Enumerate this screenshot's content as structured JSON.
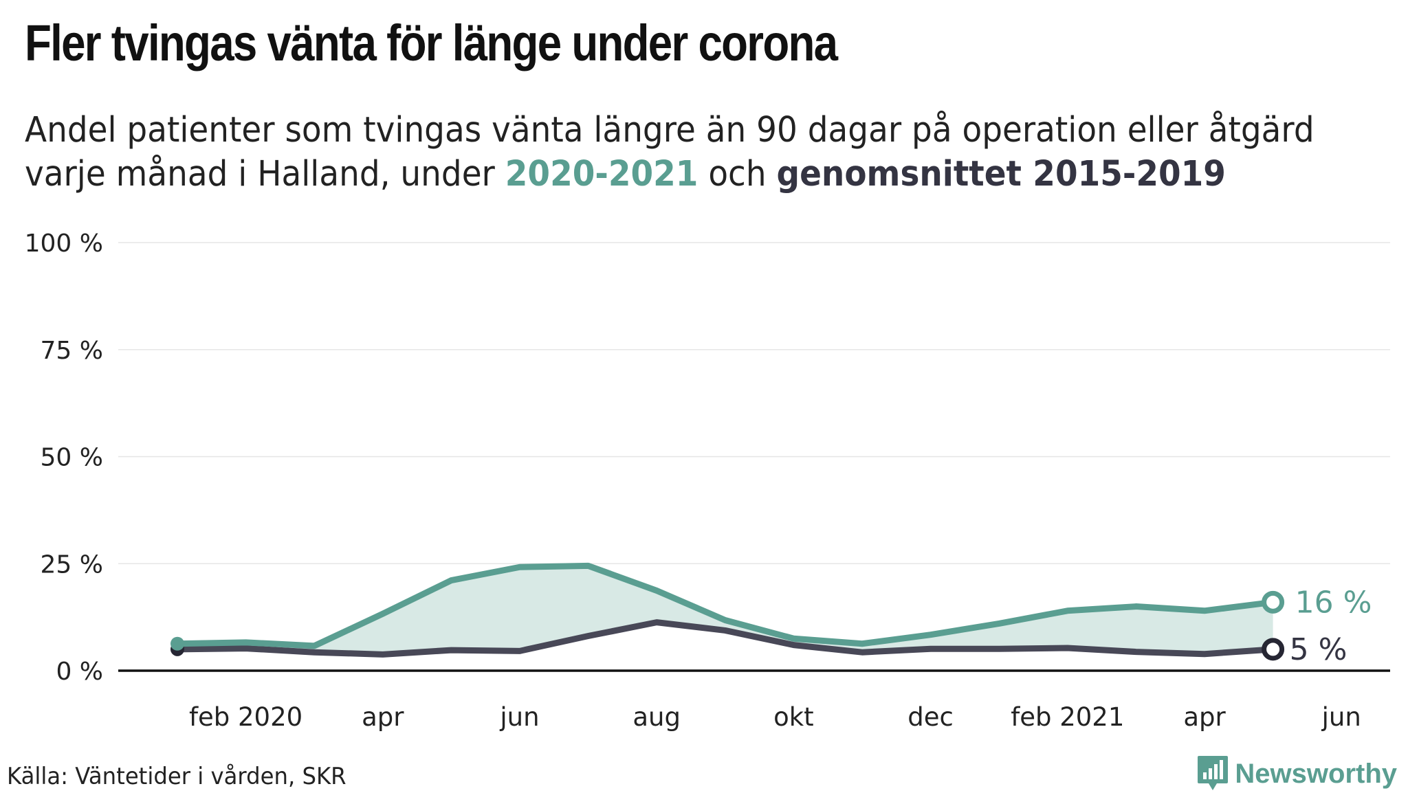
{
  "header": {
    "title": "Fler tvingas vänta för länge under corona",
    "subtitle_line1": "Andel patienter som tvingas vänta längre än 90 dagar på operation eller åtgärd",
    "subtitle_line2_prefix": "varje månad i Halland, under ",
    "subtitle_highlight_1": "2020-2021",
    "subtitle_middle": " och ",
    "subtitle_highlight_2": "genomsnittet 2015-2019"
  },
  "footer": {
    "source": "Källa: Väntetider i vården, SKR",
    "logo_text": "Newsworthy"
  },
  "colors": {
    "series_2020_2021": "#5a9e91",
    "series_average": "#484857",
    "area_fill": "#d8e9e5",
    "gridline": "#e6e6e6",
    "baseline": "#111111"
  },
  "chart_data": {
    "type": "line",
    "ylim": [
      0,
      100
    ],
    "y_ticks": [
      {
        "value": 0,
        "label": "0 %"
      },
      {
        "value": 25,
        "label": "25 %"
      },
      {
        "value": 50,
        "label": "50 %"
      },
      {
        "value": 75,
        "label": "75 %"
      },
      {
        "value": 100,
        "label": "100 %"
      }
    ],
    "x_ticks": [
      {
        "month": "2020-02",
        "label": "feb 2020"
      },
      {
        "month": "2020-04",
        "label": "apr"
      },
      {
        "month": "2020-06",
        "label": "jun"
      },
      {
        "month": "2020-08",
        "label": "aug"
      },
      {
        "month": "2020-10",
        "label": "okt"
      },
      {
        "month": "2020-12",
        "label": "dec"
      },
      {
        "month": "2021-02",
        "label": "feb 2021"
      },
      {
        "month": "2021-04",
        "label": "apr"
      },
      {
        "month": "2021-06",
        "label": "jun"
      }
    ],
    "x": [
      "2020-01",
      "2020-02",
      "2020-03",
      "2020-04",
      "2020-05",
      "2020-06",
      "2020-07",
      "2020-08",
      "2020-09",
      "2020-10",
      "2020-11",
      "2020-12",
      "2021-01",
      "2021-02",
      "2021-03",
      "2021-04",
      "2021-05"
    ],
    "series": [
      {
        "name": "2020-2021",
        "values": [
          6.3,
          6.6,
          5.8,
          13.3,
          21.1,
          24.2,
          24.5,
          18.7,
          11.8,
          7.5,
          6.3,
          8.4,
          11.0,
          14.0,
          15.0,
          14.0,
          16.0
        ],
        "end_label": "16 %"
      },
      {
        "name": "genomsnittet 2015-2019",
        "values": [
          5.0,
          5.2,
          4.3,
          3.8,
          4.8,
          4.6,
          8.1,
          11.3,
          9.4,
          6.0,
          4.3,
          5.1,
          5.1,
          5.3,
          4.4,
          3.9,
          5.0
        ],
        "end_label": "5 %"
      }
    ],
    "shaded_area_between_series": true,
    "grid": true
  }
}
